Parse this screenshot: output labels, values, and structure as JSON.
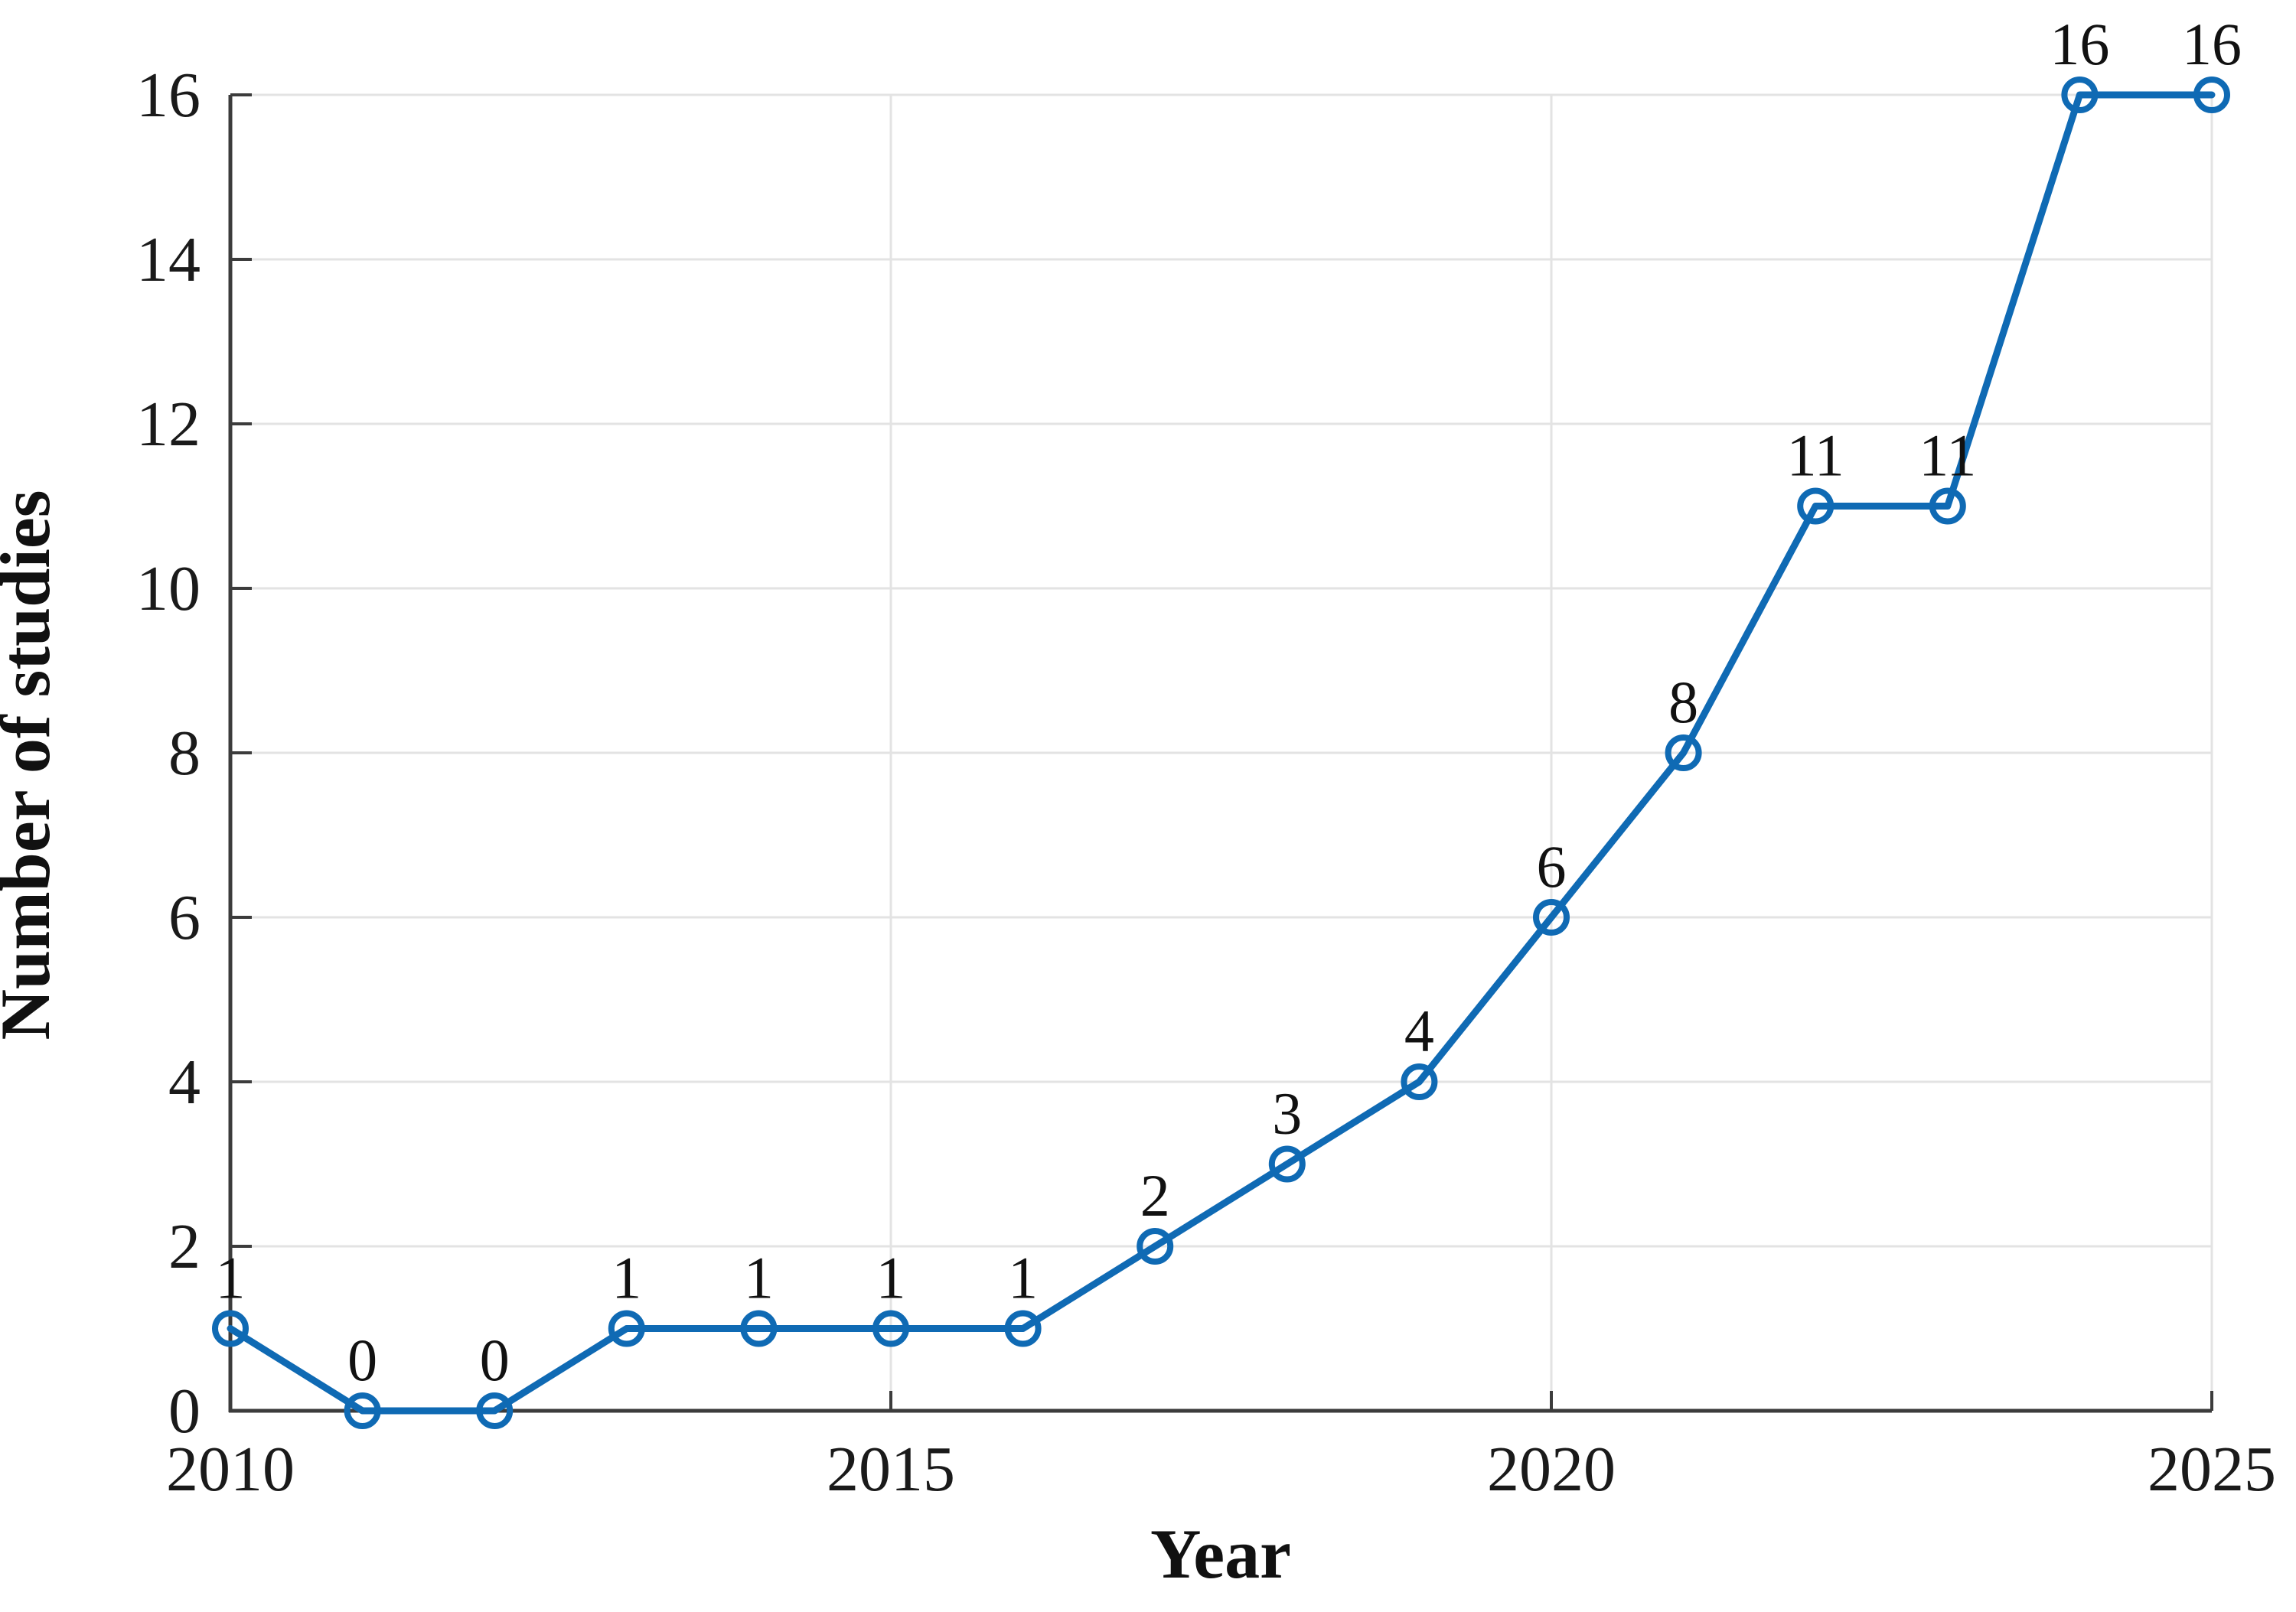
{
  "chart_data": {
    "type": "line",
    "title": "",
    "xlabel": "Year",
    "ylabel": "Number of studies",
    "x": [
      2010,
      2011,
      2012,
      2013,
      2014,
      2015,
      2016,
      2017,
      2018,
      2019,
      2020,
      2021,
      2022,
      2023,
      2024,
      2025
    ],
    "values": [
      1,
      0,
      0,
      1,
      1,
      1,
      1,
      2,
      3,
      4,
      6,
      8,
      11,
      11,
      16,
      16
    ],
    "series": [
      {
        "name": "Number of studies",
        "values": [
          1,
          0,
          0,
          1,
          1,
          1,
          1,
          2,
          3,
          4,
          6,
          8,
          11,
          11,
          16,
          16
        ]
      }
    ],
    "xticks": [
      2010,
      2015,
      2020,
      2025
    ],
    "yticks": [
      0,
      2,
      4,
      6,
      8,
      10,
      12,
      14,
      16
    ],
    "xlim": [
      2010,
      2025
    ],
    "ylim": [
      0,
      16
    ],
    "grid": true,
    "legend_position": "none",
    "marker": "open-circle",
    "point_labels_shown": true,
    "line_color": "#0F6AB4",
    "axis_color": "#3C3C3C",
    "grid_color": "#E3E3E3",
    "label_color": "#1A1A1A",
    "background_color": "#FFFFFF"
  }
}
